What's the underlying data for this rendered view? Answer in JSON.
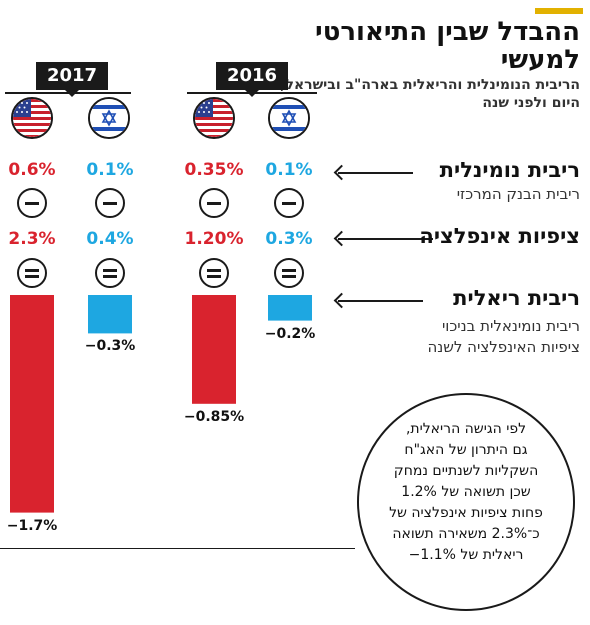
{
  "header": {
    "title": "ההבדל שבין התיאורטי למעשי",
    "subtitle": "הריבית הנומינלית והריאלית בארה\"ב ובישראל, היום ולפני שנה",
    "accent_color": "#e2b100"
  },
  "row_labels": {
    "nominal": "ריבית נומינלית",
    "nominal_sub": "ריבית הבנק המרכזי",
    "inflation": "ציפיות אינפלציה",
    "real": "ריבית ריאלית",
    "real_sub_1": "ריבית נומינאלית בניכוי",
    "real_sub_2": "ציפיות האינפלציה לשנה"
  },
  "operators": {
    "minus": "minus-icon",
    "equals": "equals-icon"
  },
  "flags": {
    "usa": "usa-flag-icon",
    "israel": "israel-flag-icon"
  },
  "colors": {
    "usa": "#d9232e",
    "israel": "#1ea7e1"
  },
  "note": {
    "lines": [
      "לפי הגישה הריאלית,",
      "גם היתרון של האג\"ח",
      "השקליות לשנתיים נמחק",
      "שכן תשואה של 1.2%",
      "פחות ציפיות אינפלציה של",
      "כ־2.3% משאירה תשואה",
      "ריאלית של 1.1%−"
    ]
  },
  "chart_data": {
    "type": "bar",
    "groups": [
      {
        "year": "2017",
        "columns": [
          {
            "country": "USA",
            "nominal_label": "0.6%",
            "inflation_label": "2.3%",
            "real": -1.7,
            "real_label": "−1.7%"
          },
          {
            "country": "Israel",
            "nominal_label": "0.1%",
            "inflation_label": "0.4%",
            "real": -0.3,
            "real_label": "−0.3%"
          }
        ]
      },
      {
        "year": "2016",
        "columns": [
          {
            "country": "USA",
            "nominal_label": "0.35%",
            "inflation_label": "1.20%",
            "real": -0.85,
            "real_label": "−0.85%"
          },
          {
            "country": "Israel",
            "nominal_label": "0.1%",
            "inflation_label": "0.3%",
            "real": -0.2,
            "real_label": "−0.2%"
          }
        ]
      }
    ]
  }
}
